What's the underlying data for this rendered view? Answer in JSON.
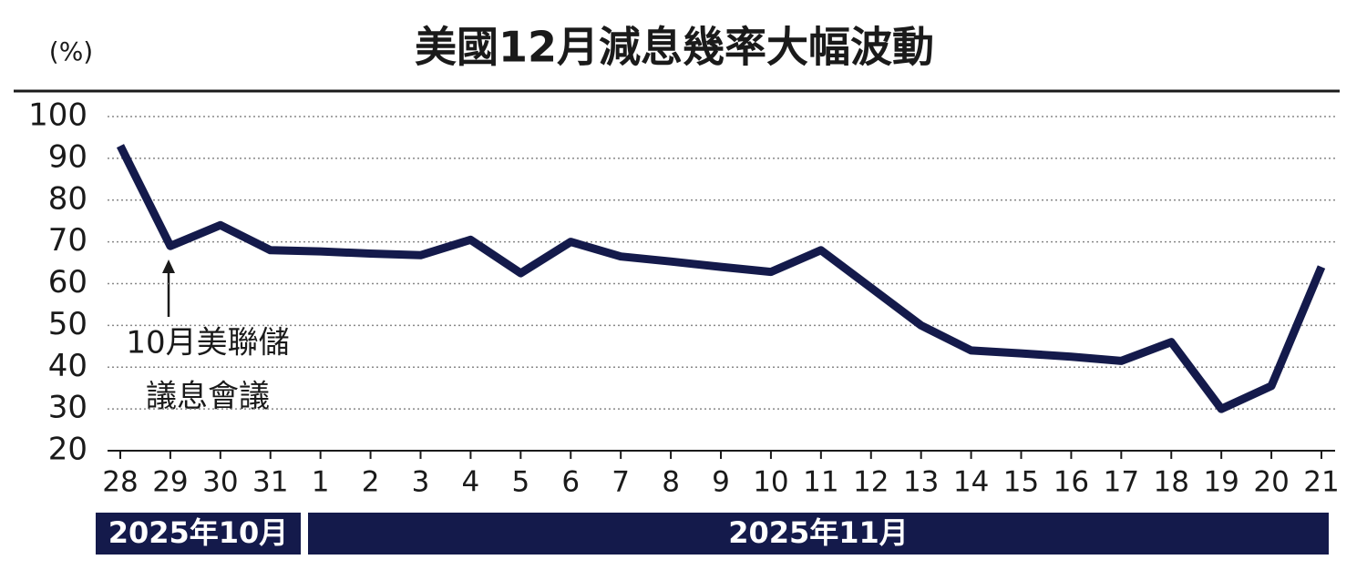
{
  "chart_data": {
    "type": "line",
    "title": "美國12月減息幾率大幅波動",
    "unit_label": "(%)",
    "annotation": [
      "10月美聯儲",
      "議息會議"
    ],
    "x_groups": [
      "2025年10月",
      "2025年11月"
    ],
    "categories": [
      "28",
      "29",
      "30",
      "31",
      "1",
      "2",
      "3",
      "4",
      "5",
      "6",
      "7",
      "8",
      "9",
      "10",
      "11",
      "12",
      "13",
      "14",
      "15",
      "16",
      "17",
      "18",
      "19",
      "20",
      "21"
    ],
    "series": [
      {
        "name": "減息幾率",
        "color": "#141a4b",
        "values": [
          93,
          69,
          74,
          68,
          67.7,
          67.2,
          66.8,
          70.5,
          62.5,
          70,
          66.5,
          65.3,
          64,
          62.8,
          68,
          59,
          50,
          44,
          43.3,
          42.5,
          41.5,
          46,
          30,
          35.5,
          64
        ]
      }
    ],
    "ylim": [
      20,
      100
    ],
    "yticks": [
      20,
      30,
      40,
      50,
      60,
      70,
      80,
      90,
      100
    ],
    "grid": true
  }
}
